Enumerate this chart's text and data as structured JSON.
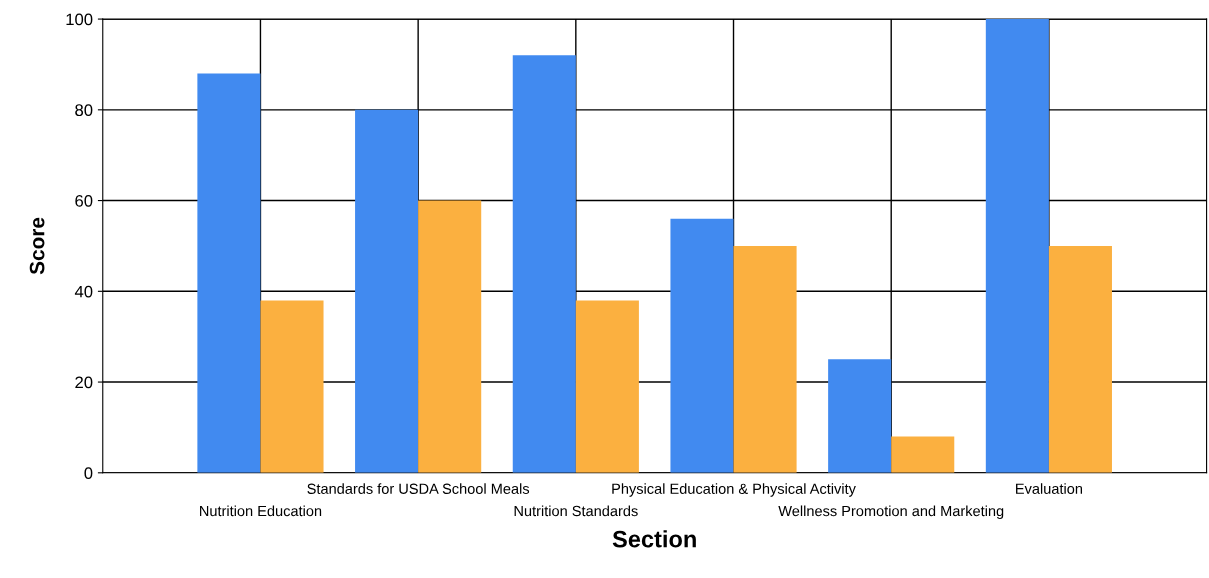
{
  "chart_data": {
    "type": "bar",
    "xlabel": "Section",
    "ylabel": "Score",
    "categories": [
      "Nutrition Education",
      "Standards for USDA School Meals",
      "Nutrition Standards",
      "Physical Education & Physical Activity",
      "Wellness Promotion and Marketing",
      "Evaluation"
    ],
    "series": [
      {
        "color": "#418af0",
        "values": [
          88,
          80,
          92,
          56,
          25,
          100
        ]
      },
      {
        "color": "#fbb040",
        "values": [
          38,
          60,
          38,
          50,
          8,
          50
        ]
      }
    ],
    "ylim": [
      0,
      100
    ],
    "yticks": [
      0,
      20,
      40,
      60,
      80,
      100
    ],
    "grid": true,
    "legend": false
  }
}
